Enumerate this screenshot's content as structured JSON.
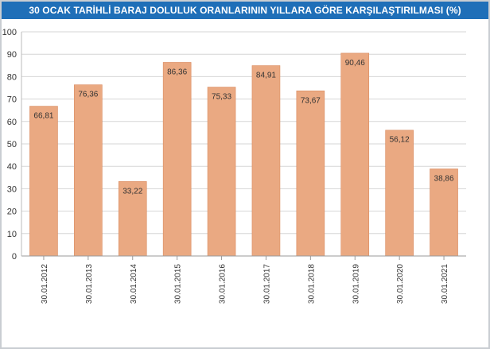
{
  "chart_data": {
    "type": "bar",
    "title": "30 OCAK TARİHLİ BARAJ DOLULUK ORANLARININ YILLARA GÖRE KARŞILAŞTIRILMASI (%)",
    "categories": [
      "30.01.2012",
      "30.01.2013",
      "30.01.2014",
      "30.01.2015",
      "30.01.2016",
      "30.01.2017",
      "30.01.2018",
      "30.01.2019",
      "30.01.2020",
      "30.01.2021"
    ],
    "values": [
      66.81,
      76.36,
      33.22,
      86.36,
      75.33,
      84.91,
      73.67,
      90.46,
      56.12,
      38.86
    ],
    "value_labels": [
      "66,81",
      "76,36",
      "33,22",
      "86,36",
      "75,33",
      "84,91",
      "73,67",
      "90,46",
      "56,12",
      "38,86"
    ],
    "yticks": [
      "0",
      "10",
      "20",
      "30",
      "40",
      "50",
      "60",
      "70",
      "80",
      "90",
      "100"
    ],
    "ylim": [
      0,
      100
    ],
    "grid": true,
    "colors": {
      "bar": "#eaa982",
      "bar_stroke": "#d98a5f",
      "title_bg": "#1f6fb8",
      "grid": "#d6d6d6"
    }
  }
}
